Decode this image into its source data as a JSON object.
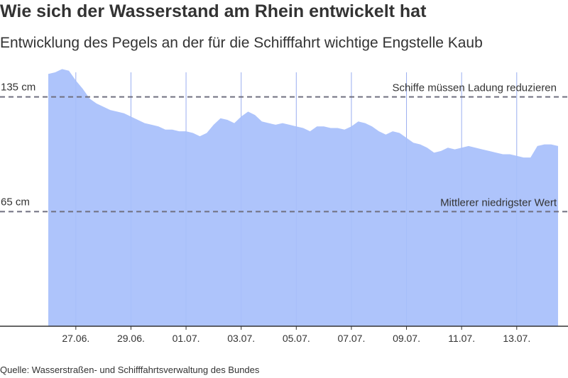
{
  "title": "Wie sich der Wasserstand am Rhein entwickelt hat",
  "subtitle": "Entwicklung des Pegels an der für die Schifffahrt wichtige Engstelle Kaub",
  "source": "Quelle: Wasserstraßen- und Schifffahrtsverwaltung des Bundes",
  "colors": {
    "area": "#a7bffb",
    "gridline": "#9aaef0",
    "reference": "#707080",
    "axis": "#333333",
    "text": "#333333"
  },
  "chart_data": {
    "type": "area",
    "x_unit": "days",
    "x_range": [
      "2022-06-26",
      "2022-07-14"
    ],
    "y_unit": "cm",
    "ylim": [
      -5,
      150
    ],
    "grid": "vertical",
    "x_ticks": [
      {
        "date": "2022-06-27",
        "label": "27.06."
      },
      {
        "date": "2022-06-29",
        "label": "29.06."
      },
      {
        "date": "2022-07-01",
        "label": "01.07."
      },
      {
        "date": "2022-07-03",
        "label": "03.07."
      },
      {
        "date": "2022-07-05",
        "label": "05.07."
      },
      {
        "date": "2022-07-07",
        "label": "07.07."
      },
      {
        "date": "2022-07-09",
        "label": "09.07."
      },
      {
        "date": "2022-07-11",
        "label": "11.07."
      },
      {
        "date": "2022-07-13",
        "label": "13.07."
      }
    ],
    "reference_lines": [
      {
        "value": 135,
        "value_label": "135 cm",
        "label": "Schiffe müssen Ladung reduzieren"
      },
      {
        "value": 65,
        "value_label": "65 cm",
        "label": "Mittlerer niedrigster Wert"
      }
    ],
    "series": [
      {
        "x": [
          "2022-06-26 00:00",
          "2022-06-26 06:00",
          "2022-06-26 12:00",
          "2022-06-26 18:00",
          "2022-06-27 00:00",
          "2022-06-27 06:00",
          "2022-06-27 12:00",
          "2022-06-27 18:00",
          "2022-06-28 00:00",
          "2022-06-28 06:00",
          "2022-06-28 12:00",
          "2022-06-28 18:00",
          "2022-06-29 00:00",
          "2022-06-29 06:00",
          "2022-06-29 12:00",
          "2022-06-29 18:00",
          "2022-06-30 00:00",
          "2022-06-30 06:00",
          "2022-06-30 12:00",
          "2022-06-30 18:00",
          "2022-07-01 00:00",
          "2022-07-01 06:00",
          "2022-07-01 12:00",
          "2022-07-01 18:00",
          "2022-07-02 00:00",
          "2022-07-02 06:00",
          "2022-07-02 12:00",
          "2022-07-02 18:00",
          "2022-07-03 00:00",
          "2022-07-03 06:00",
          "2022-07-03 12:00",
          "2022-07-03 18:00",
          "2022-07-04 00:00",
          "2022-07-04 06:00",
          "2022-07-04 12:00",
          "2022-07-04 18:00",
          "2022-07-05 00:00",
          "2022-07-05 06:00",
          "2022-07-05 12:00",
          "2022-07-05 18:00",
          "2022-07-06 00:00",
          "2022-07-06 06:00",
          "2022-07-06 12:00",
          "2022-07-06 18:00",
          "2022-07-07 00:00",
          "2022-07-07 06:00",
          "2022-07-07 12:00",
          "2022-07-07 18:00",
          "2022-07-08 00:00",
          "2022-07-08 06:00",
          "2022-07-08 12:00",
          "2022-07-08 18:00",
          "2022-07-09 00:00",
          "2022-07-09 06:00",
          "2022-07-09 12:00",
          "2022-07-09 18:00",
          "2022-07-10 00:00",
          "2022-07-10 06:00",
          "2022-07-10 12:00",
          "2022-07-10 18:00",
          "2022-07-11 00:00",
          "2022-07-11 06:00",
          "2022-07-11 12:00",
          "2022-07-11 18:00",
          "2022-07-12 00:00",
          "2022-07-12 06:00",
          "2022-07-12 12:00",
          "2022-07-12 18:00",
          "2022-07-13 00:00",
          "2022-07-13 06:00",
          "2022-07-13 12:00",
          "2022-07-13 18:00",
          "2022-07-14 00:00",
          "2022-07-14 06:00",
          "2022-07-14 12:00"
        ],
        "values": [
          149,
          150,
          152,
          151,
          145,
          140,
          134,
          131,
          129,
          127,
          126,
          125,
          123,
          121,
          119,
          118,
          117,
          115,
          115,
          114,
          114,
          113,
          111,
          113,
          118,
          122,
          121,
          119,
          123,
          126,
          124,
          120,
          119,
          118,
          119,
          118,
          117,
          116,
          114,
          117,
          117,
          116,
          116,
          115,
          117,
          120,
          119,
          117,
          114,
          112,
          114,
          113,
          110,
          107,
          106,
          104,
          101,
          102,
          104,
          103,
          104,
          105,
          104,
          103,
          102,
          101,
          100,
          100,
          99,
          98,
          98,
          105,
          106,
          106,
          105
        ]
      }
    ]
  }
}
